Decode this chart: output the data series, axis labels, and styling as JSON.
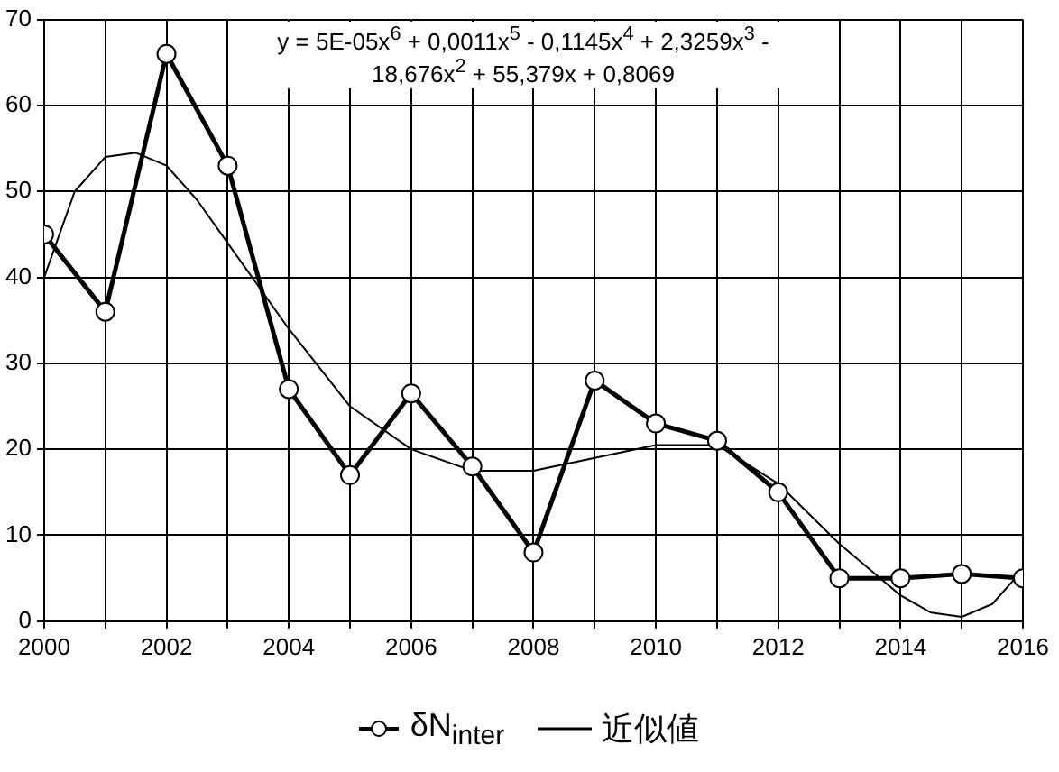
{
  "chart_data": {
    "type": "line",
    "annotations": [
      "y = 5E-05x$^{6}$ + 0,0011x$^{5}$ - 0,1145x$^{4}$ + 2,3259x$^{3}$ - 18,676x$^{2}$ + 55,379x + 0,8069"
    ],
    "x": [
      2000,
      2001,
      2002,
      2003,
      2004,
      2005,
      2006,
      2007,
      2008,
      2009,
      2010,
      2011,
      2012,
      2013,
      2014,
      2015,
      2016
    ],
    "series": [
      {
        "name": "δN$_{inter}$",
        "color": "#000000",
        "marker": "circle",
        "values": [
          45,
          36,
          66,
          53,
          27,
          17,
          26.5,
          18,
          8,
          28,
          23,
          21,
          15,
          5,
          5,
          5.5,
          5
        ]
      },
      {
        "name": "近似値",
        "color": "#000000",
        "marker": "none",
        "x": [
          2000,
          2000.5,
          2001,
          2001.5,
          2002,
          2002.5,
          2003,
          2004,
          2005,
          2006,
          2007,
          2008,
          2009,
          2010,
          2011,
          2012,
          2013,
          2014,
          2014.5,
          2015,
          2015.5,
          2016
        ],
        "values": [
          40,
          50,
          54,
          54.5,
          53,
          49,
          44,
          34,
          25,
          20,
          17.5,
          17.5,
          19,
          20.5,
          20.5,
          16,
          9,
          3,
          1,
          0.5,
          2,
          6
        ]
      }
    ],
    "xlim": [
      2000,
      2016
    ],
    "xticks": [
      2000,
      {
        "value": 2001,
        "label": null
      },
      2002,
      {
        "value": 2003,
        "label": null
      },
      2004,
      {
        "value": 2005,
        "label": null
      },
      2006,
      {
        "value": 2007,
        "label": null
      },
      2008,
      {
        "value": 2009,
        "label": null
      },
      2010,
      {
        "value": 2011,
        "label": null
      },
      2012,
      {
        "value": 2013,
        "label": null
      },
      2014,
      {
        "value": 2015,
        "label": null
      },
      2016
    ],
    "ylim": [
      0,
      70
    ],
    "yticks": [
      0,
      10,
      20,
      30,
      40,
      50,
      60,
      70
    ],
    "grid": true,
    "legend": "bottom"
  }
}
